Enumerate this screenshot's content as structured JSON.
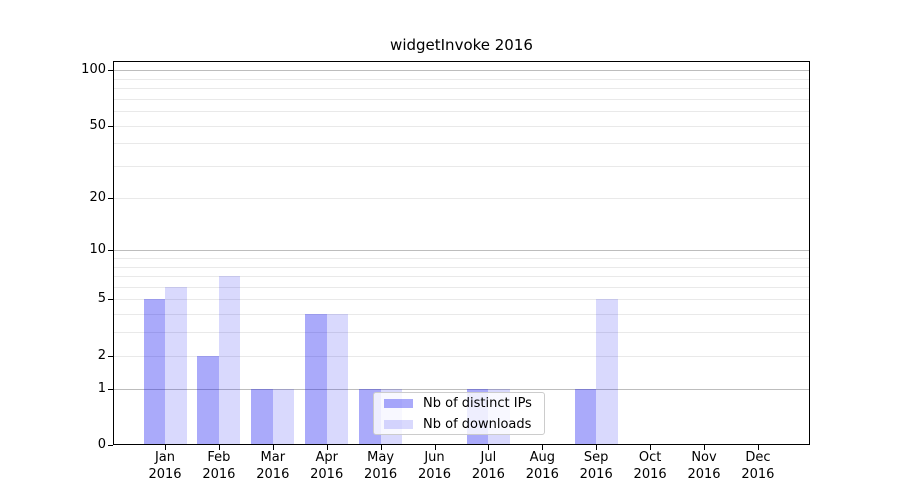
{
  "chart_data": {
    "type": "bar",
    "title": "widgetInvoke 2016",
    "months": [
      "Jan",
      "Feb",
      "Mar",
      "Apr",
      "May",
      "Jun",
      "Jul",
      "Aug",
      "Sep",
      "Oct",
      "Nov",
      "Dec"
    ],
    "year": "2016",
    "categories": [
      "Jan 2016",
      "Feb 2016",
      "Mar 2016",
      "Apr 2016",
      "May 2016",
      "Jun 2016",
      "Jul 2016",
      "Aug 2016",
      "Sep 2016",
      "Oct 2016",
      "Nov 2016",
      "Dec 2016"
    ],
    "series": [
      {
        "name": "Nb of distinct IPs",
        "key": "distinct-ips",
        "color": "rgba(10,10,240,0.345)",
        "values": [
          5,
          2,
          1,
          4,
          1,
          0,
          1,
          0,
          1,
          0,
          0,
          0
        ]
      },
      {
        "name": "Nb of downloads",
        "key": "downloads",
        "color": "rgba(10,10,240,0.155)",
        "values": [
          6,
          7,
          1,
          4,
          1,
          0,
          1,
          0,
          5,
          0,
          0,
          0
        ]
      }
    ],
    "y_axis": {
      "scale": "log1p",
      "range": [
        0,
        100
      ],
      "ticks": [
        0,
        1,
        2,
        5,
        10,
        20,
        50,
        100
      ],
      "major_gridlines": [
        1,
        10,
        100
      ],
      "minor_gridlines": [
        2,
        3,
        4,
        5,
        6,
        7,
        8,
        9,
        20,
        30,
        40,
        50,
        60,
        70,
        80,
        90
      ]
    },
    "legend_position": "inside-lower-center",
    "colors": {
      "grid_major": "#bdbdbd",
      "grid_minor": "#e9e9e9",
      "axis": "#000000",
      "background": "#ffffff"
    }
  }
}
